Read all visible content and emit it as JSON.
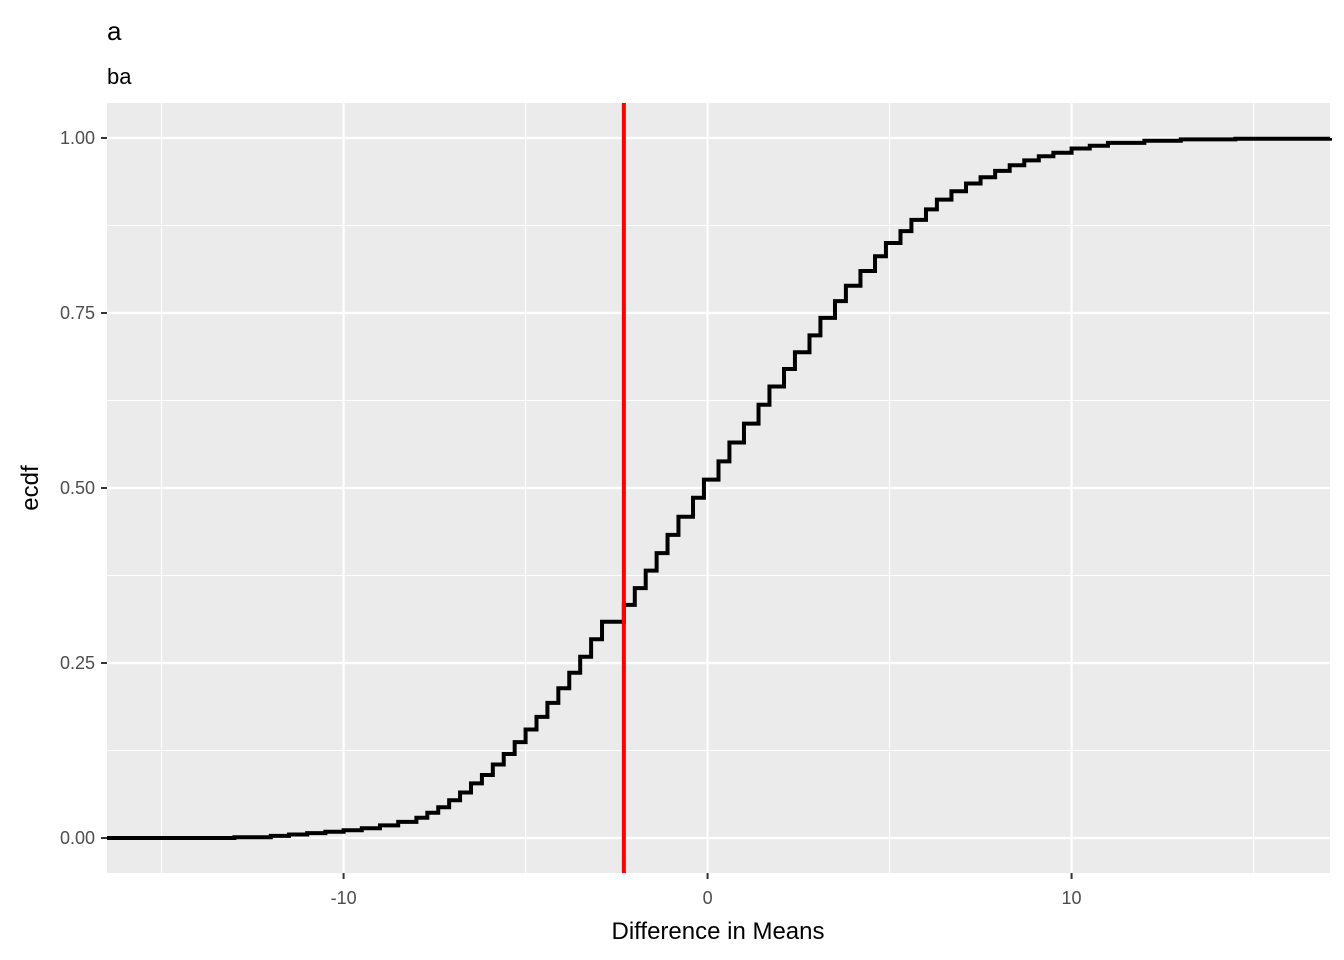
{
  "chart_data": {
    "type": "line",
    "step": true,
    "title": "a",
    "subtitle": "ba",
    "xlabel": "Difference in Means",
    "ylabel": "ecdf",
    "xlim": [
      -16.5,
      17.1
    ],
    "ylim": [
      -0.05,
      1.05
    ],
    "x_ticks": [
      -10,
      0,
      10
    ],
    "x_tick_labels": [
      "-10",
      "0",
      "10"
    ],
    "y_ticks": [
      0,
      0.25,
      0.5,
      0.75,
      1
    ],
    "y_tick_labels": [
      "0.00",
      "0.25",
      "0.50",
      "0.75",
      "1.00"
    ],
    "grid": true,
    "colors": {
      "panel": "#ebebeb",
      "grid": "#ffffff",
      "ecdf_line": "#000000",
      "reference_line": "#ff0000"
    },
    "reference_line": {
      "x": -2.3
    },
    "series": [
      {
        "points": [
          [
            -16.5,
            0.0
          ],
          [
            -13.0,
            0.001
          ],
          [
            -12.0,
            0.003
          ],
          [
            -11.5,
            0.005
          ],
          [
            -11.0,
            0.007
          ],
          [
            -10.5,
            0.009
          ],
          [
            -10.0,
            0.011
          ],
          [
            -9.5,
            0.014
          ],
          [
            -9.0,
            0.018
          ],
          [
            -8.5,
            0.023
          ],
          [
            -8.0,
            0.029
          ],
          [
            -7.7,
            0.036
          ],
          [
            -7.4,
            0.044
          ],
          [
            -7.1,
            0.054
          ],
          [
            -6.8,
            0.065
          ],
          [
            -6.5,
            0.078
          ],
          [
            -6.2,
            0.09
          ],
          [
            -5.9,
            0.105
          ],
          [
            -5.6,
            0.12
          ],
          [
            -5.3,
            0.137
          ],
          [
            -5.0,
            0.155
          ],
          [
            -4.7,
            0.173
          ],
          [
            -4.4,
            0.193
          ],
          [
            -4.1,
            0.214
          ],
          [
            -3.8,
            0.236
          ],
          [
            -3.5,
            0.259
          ],
          [
            -3.2,
            0.284
          ],
          [
            -2.9,
            0.309
          ],
          [
            -2.3,
            0.333
          ],
          [
            -2.0,
            0.357
          ],
          [
            -1.7,
            0.382
          ],
          [
            -1.4,
            0.407
          ],
          [
            -1.1,
            0.433
          ],
          [
            -0.8,
            0.459
          ],
          [
            -0.4,
            0.486
          ],
          [
            -0.1,
            0.512
          ],
          [
            0.3,
            0.538
          ],
          [
            0.6,
            0.565
          ],
          [
            1.0,
            0.592
          ],
          [
            1.4,
            0.619
          ],
          [
            1.7,
            0.645
          ],
          [
            2.1,
            0.67
          ],
          [
            2.4,
            0.694
          ],
          [
            2.8,
            0.718
          ],
          [
            3.1,
            0.743
          ],
          [
            3.5,
            0.767
          ],
          [
            3.8,
            0.789
          ],
          [
            4.2,
            0.81
          ],
          [
            4.6,
            0.831
          ],
          [
            4.9,
            0.85
          ],
          [
            5.3,
            0.867
          ],
          [
            5.6,
            0.883
          ],
          [
            6.0,
            0.898
          ],
          [
            6.3,
            0.912
          ],
          [
            6.7,
            0.924
          ],
          [
            7.1,
            0.935
          ],
          [
            7.5,
            0.944
          ],
          [
            7.9,
            0.953
          ],
          [
            8.3,
            0.961
          ],
          [
            8.7,
            0.968
          ],
          [
            9.1,
            0.974
          ],
          [
            9.5,
            0.979
          ],
          [
            10.0,
            0.985
          ],
          [
            10.5,
            0.989
          ],
          [
            11.0,
            0.993
          ],
          [
            12.0,
            0.996
          ],
          [
            13.0,
            0.998
          ],
          [
            14.5,
            0.999
          ],
          [
            17.1,
            1.0
          ]
        ]
      }
    ]
  }
}
